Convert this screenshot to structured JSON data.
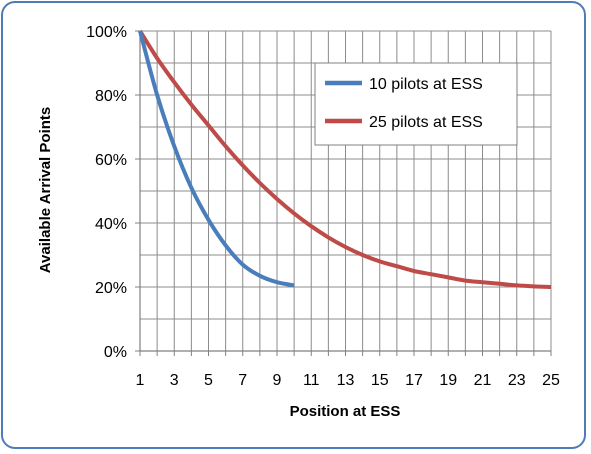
{
  "chart_data": {
    "type": "line",
    "title": "",
    "xlabel": "Position at ESS",
    "ylabel": "Available Arrival Points",
    "xlim": [
      1,
      25
    ],
    "ylim": [
      0,
      100
    ],
    "x_tick_labels": [
      "1",
      "3",
      "5",
      "7",
      "9",
      "11",
      "13",
      "15",
      "17",
      "19",
      "21",
      "23",
      "25"
    ],
    "y_tick_labels": [
      "0%",
      "20%",
      "40%",
      "60%",
      "80%",
      "100%"
    ],
    "grid": true,
    "legend_position": "top-right",
    "series": [
      {
        "name": "10 pilots at ESS",
        "color": "#4a7ebb",
        "x": [
          1,
          2,
          3,
          4,
          5,
          6,
          7,
          8,
          9,
          10
        ],
        "y": [
          100,
          80,
          64,
          51,
          41,
          33,
          27,
          23.5,
          21.5,
          20.5
        ]
      },
      {
        "name": "25 pilots at ESS",
        "color": "#be4b48",
        "x": [
          1,
          2,
          3,
          4,
          5,
          6,
          7,
          8,
          9,
          10,
          11,
          12,
          13,
          14,
          15,
          16,
          17,
          18,
          19,
          20,
          21,
          22,
          23,
          24,
          25
        ],
        "y": [
          100,
          91.5,
          84,
          77,
          70.5,
          64,
          58,
          52.5,
          47.5,
          43,
          39,
          35.5,
          32.5,
          30,
          28,
          26.5,
          25,
          24,
          23,
          22,
          21.5,
          21,
          20.5,
          20.2,
          20
        ]
      }
    ]
  }
}
